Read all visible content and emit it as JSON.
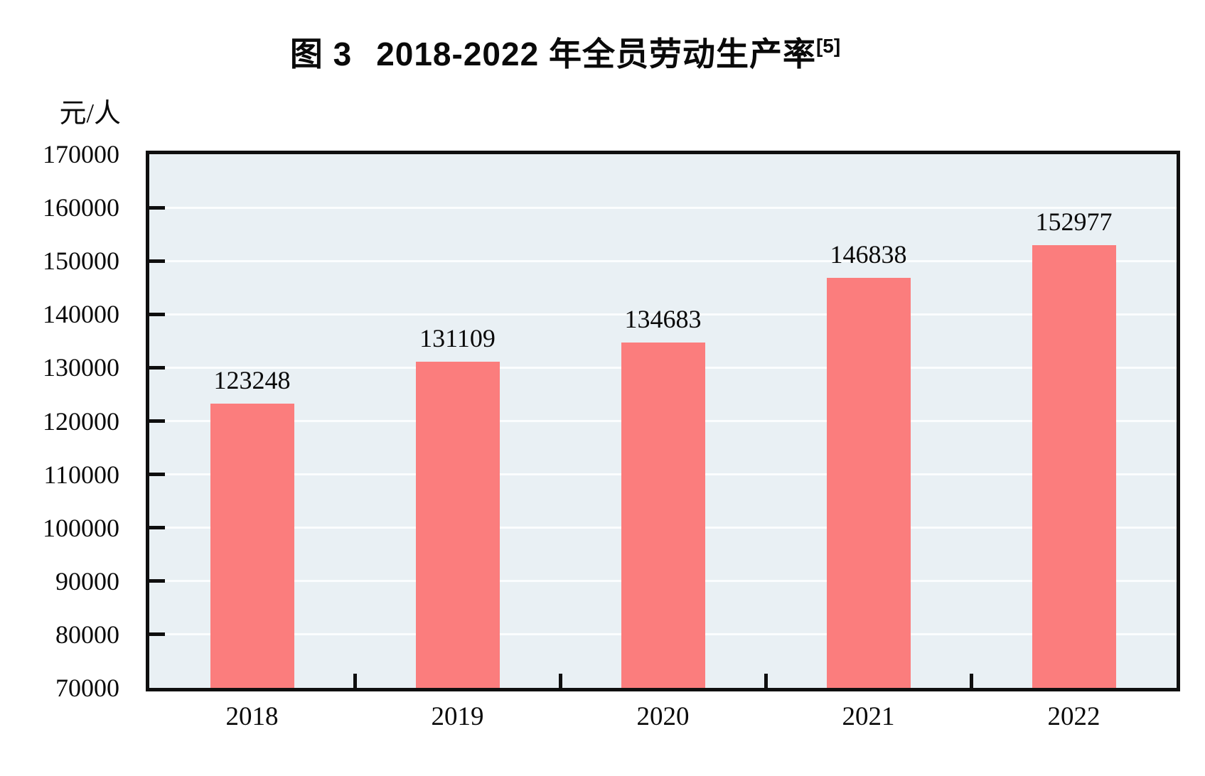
{
  "figure": {
    "title_prefix": "图 3",
    "title_main": "2018-2022 年全员劳动生产率",
    "title_superscript": "[5]",
    "unit_label": "元/人"
  },
  "chart_data": {
    "type": "bar",
    "title": "图 3 2018-2022 年全员劳动生产率[5]",
    "xlabel": "",
    "ylabel": "元/人",
    "categories": [
      "2018",
      "2019",
      "2020",
      "2021",
      "2022"
    ],
    "values": [
      123248,
      131109,
      134683,
      146838,
      152977
    ],
    "data_labels": [
      "123248",
      "131109",
      "134683",
      "146838",
      "152977"
    ],
    "ylim": [
      70000,
      170000
    ],
    "ytick_step": 10000,
    "ytick_labels": [
      "70000",
      "80000",
      "90000",
      "100000",
      "110000",
      "120000",
      "130000",
      "140000",
      "150000",
      "160000",
      "170000"
    ],
    "grid": true,
    "legend_position": "none",
    "colors": {
      "bar_fill": "#FB7D7D",
      "plot_background": "#E9F0F4",
      "gridline": "#FBFDFE",
      "axis": "#0F0F0F",
      "text": "#0A0A0A"
    }
  }
}
